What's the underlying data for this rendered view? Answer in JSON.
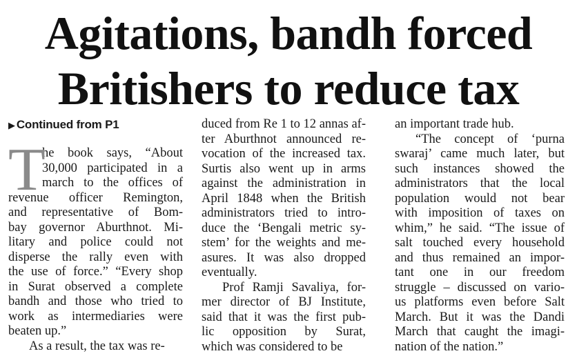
{
  "headline": {
    "line1": "Agitations, bandh forced",
    "line2": "Britishers to reduce tax"
  },
  "kicker": {
    "icon": "triangle-right-icon",
    "glyph": "▶",
    "text": "Continued from P1"
  },
  "dropcap": "T",
  "columns": [
    {
      "paragraphs": [
        [
          "he book says, “About",
          "30,000 participated in a",
          "march to the offices of",
          "revenue officer Remington,",
          "and representative of Bom-",
          "bay governor Aburthnot. Mi-",
          "litary and police could not",
          "disperse the rally even with",
          "the use of force.” “Every shop",
          "in Surat observed a complete",
          "bandh and those who tried to",
          "work as intermediaries were",
          "beaten up.”"
        ],
        [
          "As a result, the tax was re-"
        ]
      ]
    },
    {
      "paragraphs": [
        [
          "duced from Re 1 to 12 annas af-",
          "ter Aburthnot announced re-",
          "vocation of the increased tax.",
          "Surtis also went up in arms",
          "against the administration in",
          "April 1848 when the British",
          "administrators tried to intro-",
          "duce the ‘Bengali metric sy-",
          "stem’ for the weights and me-",
          "asures. It was also dropped",
          "eventually."
        ],
        [
          "Prof Ramji Savaliya, for-",
          "mer director of BJ Institute,",
          "said that it was the first pub-",
          "lic opposition by Surat,",
          "which was considered to be"
        ]
      ]
    },
    {
      "paragraphs": [
        [
          "an important trade hub."
        ],
        [
          "“The concept of ‘purna",
          "swaraj’ came much later, but",
          "such instances showed the",
          "administrators that the local",
          "population would not bear",
          "with imposition of taxes on",
          "whim,” he said. “The issue of",
          "salt touched every household",
          "and thus remained an impor-",
          "tant one in our freedom",
          "struggle – discussed on vario-",
          "us platforms even before Salt",
          "March. But it was the Dandi",
          "March that caught the imagi-",
          "nation of the nation.”"
        ]
      ]
    }
  ]
}
